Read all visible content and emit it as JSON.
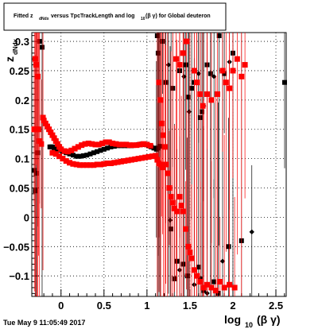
{
  "chart_data": {
    "type": "scatter",
    "title": {
      "prefix": "Fitted z",
      "sub1": "dNdx",
      "middle": "versus TpcTrackLength and log",
      "sub2": "10",
      "suffix": "(β γ) for Global deuteron"
    },
    "ylabel": "z_{dNdx}",
    "ylabel_main": "z",
    "ylabel_sub": "dNdx",
    "xlabel": "log_{10} (β γ)",
    "xlabel_main": "log",
    "xlabel_sub": "10",
    "xlabel_suffix": "(β γ)",
    "timestamp": "Tue May  9 11:05:49 2017",
    "xlim": [
      -0.34,
      2.62
    ],
    "ylim": [
      -0.135,
      0.315
    ],
    "xticks": [
      0,
      0.5,
      1,
      1.5,
      2,
      2.5
    ],
    "xtick_labels": [
      "0",
      "0.5",
      "1",
      "1.5",
      "2",
      "2.5"
    ],
    "yticks": [
      -0.1,
      -0.05,
      0,
      0.05,
      0.1,
      0.15,
      0.2,
      0.25,
      0.3
    ],
    "ytick_labels": [
      "−0.1",
      "−0.05",
      "0",
      "0.05",
      "0.1",
      "0.15",
      "0.2",
      "0.25",
      "0.3"
    ],
    "grid": true,
    "series": [
      {
        "color": "#000000",
        "marker": "square",
        "points": [
          [
            -0.31,
            0.08
          ],
          [
            -0.3,
            0.045
          ],
          [
            -0.29,
            0.075
          ],
          [
            -0.27,
            0.11
          ],
          [
            -0.25,
            0.3
          ],
          [
            -0.22,
            0.29
          ],
          [
            -0.13,
            0.12
          ],
          [
            -0.12,
            0.12
          ],
          [
            -0.11,
            0.12
          ],
          [
            -0.1,
            0.12
          ],
          [
            -0.08,
            0.118
          ],
          [
            -0.05,
            0.116
          ],
          [
            -0.02,
            0.114
          ],
          [
            0.02,
            0.112
          ],
          [
            0.06,
            0.11
          ],
          [
            0.1,
            0.108
          ],
          [
            0.14,
            0.106
          ],
          [
            0.18,
            0.104
          ],
          [
            0.22,
            0.104
          ],
          [
            0.26,
            0.105
          ],
          [
            0.3,
            0.106
          ],
          [
            0.34,
            0.108
          ],
          [
            0.38,
            0.11
          ],
          [
            0.42,
            0.112
          ],
          [
            0.46,
            0.114
          ],
          [
            0.5,
            0.116
          ],
          [
            0.54,
            0.118
          ],
          [
            0.58,
            0.12
          ],
          [
            0.62,
            0.121
          ],
          [
            0.66,
            0.122
          ],
          [
            0.7,
            0.122
          ],
          [
            0.74,
            0.122
          ],
          [
            0.78,
            0.122
          ],
          [
            0.82,
            0.122
          ],
          [
            0.86,
            0.123
          ],
          [
            0.9,
            0.124
          ],
          [
            0.94,
            0.125
          ],
          [
            0.98,
            0.124
          ],
          [
            1.02,
            0.122
          ],
          [
            1.05,
            0.12
          ],
          [
            1.08,
            0.118
          ],
          [
            1.11,
            0.116
          ],
          [
            1.13,
            0.118
          ],
          [
            1.15,
            0.121
          ],
          [
            1.12,
            0.31
          ],
          [
            1.13,
            0.28
          ],
          [
            1.18,
            0.3
          ],
          [
            1.22,
            0.23
          ],
          [
            1.25,
            0.26
          ],
          [
            1.3,
            0.22
          ],
          [
            1.38,
            0.25
          ],
          [
            1.43,
            0.24
          ],
          [
            1.45,
            0.26
          ],
          [
            1.48,
            0.205
          ],
          [
            1.49,
            0.18
          ],
          [
            1.52,
            0.22
          ],
          [
            1.55,
            0.23
          ],
          [
            1.6,
            0.245
          ],
          [
            1.62,
            0.17
          ],
          [
            1.64,
            0.18
          ],
          [
            1.66,
            0.19
          ],
          [
            1.7,
            0.26
          ],
          [
            1.74,
            0.245
          ],
          [
            1.78,
            0.24
          ],
          [
            1.84,
            0.31
          ],
          [
            1.9,
            0.245
          ],
          [
            1.96,
            0.265
          ],
          [
            2.0,
            0.28
          ],
          [
            2.68,
            0.23
          ],
          [
            1.27,
            -0.005
          ],
          [
            1.28,
            -0.02
          ],
          [
            1.35,
            -0.075
          ],
          [
            1.38,
            -0.09
          ],
          [
            1.42,
            -0.08
          ],
          [
            1.47,
            -0.1
          ],
          [
            1.55,
            -0.115
          ],
          [
            1.62,
            -0.105
          ],
          [
            1.66,
            -0.125
          ],
          [
            1.7,
            -0.13
          ],
          [
            1.78,
            -0.11
          ],
          [
            1.83,
            -0.13
          ],
          [
            1.88,
            -0.075
          ],
          [
            1.95,
            -0.05
          ],
          [
            2.1,
            -0.04
          ],
          [
            2.22,
            -0.025
          ],
          [
            1.32,
            -0.105
          ],
          [
            1.6,
            -0.085
          ]
        ]
      },
      {
        "color": "#ff0000",
        "marker": "square",
        "points": [
          [
            -0.33,
            0.15
          ],
          [
            -0.31,
            0.15
          ],
          [
            -0.3,
            0.27
          ],
          [
            -0.29,
            0.26
          ],
          [
            -0.28,
            0.15
          ],
          [
            -0.27,
            0.24
          ],
          [
            -0.26,
            0.15
          ],
          [
            -0.25,
            0.13
          ],
          [
            -0.23,
            0.125
          ],
          [
            -0.21,
            0.17
          ],
          [
            -0.2,
            0.165
          ],
          [
            -0.18,
            0.16
          ],
          [
            -0.16,
            0.155
          ],
          [
            -0.14,
            0.15
          ],
          [
            -0.12,
            0.145
          ],
          [
            -0.1,
            0.14
          ],
          [
            -0.08,
            0.135
          ],
          [
            -0.06,
            0.13
          ],
          [
            -0.04,
            0.125
          ],
          [
            -0.02,
            0.12
          ],
          [
            0.0,
            0.116
          ],
          [
            0.04,
            0.113
          ],
          [
            0.08,
            0.112
          ],
          [
            0.12,
            0.114
          ],
          [
            0.16,
            0.117
          ],
          [
            0.2,
            0.12
          ],
          [
            0.24,
            0.123
          ],
          [
            0.28,
            0.125
          ],
          [
            0.32,
            0.126
          ],
          [
            0.36,
            0.125
          ],
          [
            0.4,
            0.124
          ],
          [
            0.44,
            0.124
          ],
          [
            0.48,
            0.126
          ],
          [
            0.52,
            0.128
          ],
          [
            0.56,
            0.128
          ],
          [
            0.6,
            0.126
          ],
          [
            0.64,
            0.125
          ],
          [
            0.68,
            0.124
          ],
          [
            0.72,
            0.124
          ],
          [
            0.76,
            0.124
          ],
          [
            0.8,
            0.123
          ],
          [
            0.84,
            0.123
          ],
          [
            0.88,
            0.123
          ],
          [
            0.92,
            0.124
          ],
          [
            0.96,
            0.125
          ],
          [
            1.0,
            0.124
          ],
          [
            1.04,
            0.122
          ],
          [
            -0.1,
            0.11
          ],
          [
            -0.06,
            0.108
          ],
          [
            -0.02,
            0.104
          ],
          [
            0.02,
            0.1
          ],
          [
            0.06,
            0.096
          ],
          [
            0.1,
            0.093
          ],
          [
            0.14,
            0.091
          ],
          [
            0.18,
            0.09
          ],
          [
            0.22,
            0.089
          ],
          [
            0.26,
            0.089
          ],
          [
            0.3,
            0.089
          ],
          [
            0.34,
            0.089
          ],
          [
            0.38,
            0.089
          ],
          [
            0.42,
            0.09
          ],
          [
            0.46,
            0.09
          ],
          [
            0.5,
            0.091
          ],
          [
            0.54,
            0.092
          ],
          [
            0.58,
            0.092
          ],
          [
            0.62,
            0.093
          ],
          [
            0.66,
            0.094
          ],
          [
            0.7,
            0.095
          ],
          [
            0.74,
            0.096
          ],
          [
            0.78,
            0.097
          ],
          [
            0.82,
            0.098
          ],
          [
            0.86,
            0.099
          ],
          [
            0.9,
            0.1
          ],
          [
            0.94,
            0.101
          ],
          [
            0.98,
            0.102
          ],
          [
            1.02,
            0.103
          ],
          [
            1.06,
            0.104
          ],
          [
            1.1,
            0.105
          ],
          [
            1.12,
            0.098
          ],
          [
            1.14,
            0.092
          ],
          [
            1.16,
            0.09
          ],
          [
            1.18,
            0.085
          ],
          [
            1.14,
            0.23
          ],
          [
            1.16,
            0.2
          ],
          [
            1.17,
            0.16
          ],
          [
            1.19,
            0.14
          ],
          [
            1.21,
            0.12
          ],
          [
            1.22,
            0.09
          ],
          [
            1.24,
            0.075
          ],
          [
            1.26,
            0.05
          ],
          [
            1.28,
            0.035
          ],
          [
            1.3,
            0.025
          ],
          [
            1.32,
            0.015
          ],
          [
            1.35,
            0.01
          ],
          [
            1.38,
            0.035
          ],
          [
            1.4,
            0.02
          ],
          [
            1.42,
            0.01
          ],
          [
            1.45,
            -0.02
          ],
          [
            1.48,
            -0.05
          ],
          [
            1.5,
            -0.06
          ],
          [
            1.52,
            -0.07
          ],
          [
            1.55,
            -0.09
          ],
          [
            1.58,
            -0.1
          ],
          [
            1.62,
            -0.11
          ],
          [
            1.66,
            -0.12
          ],
          [
            1.7,
            -0.115
          ],
          [
            1.75,
            -0.12
          ],
          [
            1.8,
            -0.125
          ],
          [
            1.85,
            -0.11
          ],
          [
            1.9,
            -0.12
          ],
          [
            1.96,
            -0.115
          ],
          [
            2.02,
            -0.12
          ],
          [
            1.55,
            0.25
          ],
          [
            1.58,
            0.23
          ],
          [
            1.62,
            0.21
          ],
          [
            1.65,
            0.19
          ],
          [
            1.7,
            0.21
          ],
          [
            1.75,
            0.2
          ],
          [
            1.82,
            0.21
          ],
          [
            1.88,
            0.25
          ],
          [
            1.92,
            0.23
          ],
          [
            1.96,
            0.22
          ],
          [
            2.0,
            0.25
          ],
          [
            2.05,
            0.27
          ],
          [
            2.1,
            0.24
          ],
          [
            2.14,
            0.26
          ],
          [
            1.34,
            0.27
          ],
          [
            1.38,
            0.26
          ],
          [
            1.42,
            0.28
          ],
          [
            1.46,
            0.3
          ]
        ]
      }
    ]
  }
}
